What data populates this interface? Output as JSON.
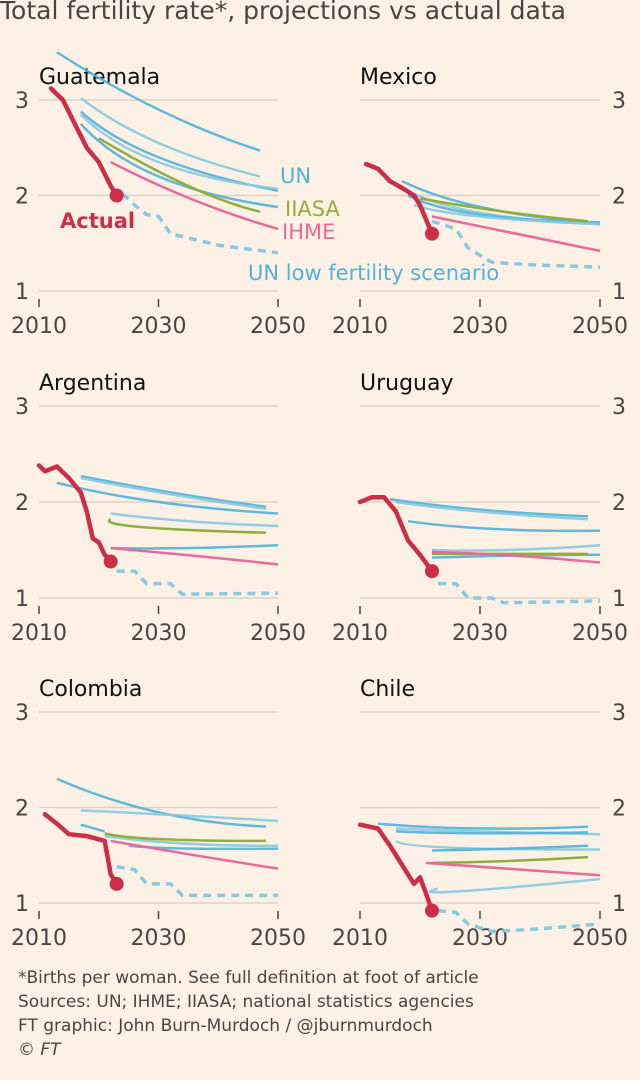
{
  "title": "Total fertility rate*, projections vs actual data",
  "footer": {
    "note": "*Births per woman. See full definition at foot of article",
    "sources": "Sources: UN; IHME; IIASA; national statistics agencies",
    "credit": "FT graphic: John Burn-Murdoch / @jburnmurdoch",
    "copyright": "© FT"
  },
  "colors": {
    "background": "#fdf1e6",
    "actual": "#cc2d47",
    "un": "#4fb3d9",
    "un_light": "#86c9e0",
    "iiasa": "#8fae3a",
    "ihme": "#e8699a",
    "grid": "#ddd2c6",
    "text": "#4a4440"
  },
  "chart_data": {
    "type": "line",
    "layout": "small multiples, 3 rows x 2 columns",
    "xlim": [
      2010,
      2050
    ],
    "ylim": [
      1,
      3
    ],
    "x_ticks": [
      "2010",
      "2030",
      "2050"
    ],
    "y_ticks": [
      "1",
      "2",
      "3"
    ],
    "grid": true,
    "legend_labels": {
      "un": "UN",
      "iiasa": "IIASA",
      "ihme": "IHME",
      "actual": "Actual",
      "un_low": "UN low fertility scenario"
    },
    "panels": [
      {
        "country": "Guatemala",
        "actual": [
          [
            2012,
            3.12
          ],
          [
            2014,
            3.0
          ],
          [
            2016,
            2.75
          ],
          [
            2018,
            2.5
          ],
          [
            2020,
            2.35
          ],
          [
            2022,
            2.1
          ],
          [
            2023,
            2.0
          ]
        ],
        "un": [
          [
            [
              2013,
              3.5
            ],
            [
              2030,
              2.9
            ],
            [
              2047,
              2.47
            ]
          ],
          [
            [
              2017,
              3.02
            ],
            [
              2030,
              2.55
            ],
            [
              2047,
              2.2
            ]
          ],
          [
            [
              2017,
              2.88
            ],
            [
              2030,
              2.4
            ],
            [
              2050,
              2.05
            ]
          ],
          [
            [
              2017,
              2.85
            ],
            [
              2030,
              2.35
            ],
            [
              2050,
              2.07
            ]
          ],
          [
            [
              2017,
              2.75
            ],
            [
              2030,
              2.2
            ],
            [
              2050,
              1.88
            ]
          ]
        ],
        "iiasa": [
          [
            2020,
            2.6
          ],
          [
            2035,
            2.1
          ],
          [
            2047,
            1.83
          ]
        ],
        "ihme": [
          [
            2022,
            2.35
          ],
          [
            2036,
            1.95
          ],
          [
            2050,
            1.65
          ]
        ],
        "un_low": [
          [
            2024,
            2.02
          ],
          [
            2026,
            1.9
          ],
          [
            2028,
            1.8
          ],
          [
            2030,
            1.78
          ],
          [
            2032,
            1.6
          ],
          [
            2040,
            1.48
          ],
          [
            2050,
            1.4
          ]
        ]
      },
      {
        "country": "Mexico",
        "actual": [
          [
            2011,
            2.33
          ],
          [
            2013,
            2.28
          ],
          [
            2015,
            2.15
          ],
          [
            2017,
            2.08
          ],
          [
            2019,
            2.0
          ],
          [
            2020,
            1.9
          ],
          [
            2021,
            1.75
          ],
          [
            2022,
            1.6
          ]
        ],
        "un": [
          [
            [
              2017,
              2.15
            ],
            [
              2030,
              1.88
            ],
            [
              2048,
              1.72
            ]
          ],
          [
            [
              2018,
              2.05
            ],
            [
              2030,
              1.82
            ],
            [
              2050,
              1.7
            ]
          ],
          [
            [
              2018,
              2.0
            ],
            [
              2030,
              1.8
            ],
            [
              2050,
              1.72
            ]
          ],
          [
            [
              2019,
              1.9
            ],
            [
              2030,
              1.78
            ],
            [
              2050,
              1.7
            ]
          ]
        ],
        "iiasa": [
          [
            2020,
            1.97
          ],
          [
            2034,
            1.83
          ],
          [
            2048,
            1.73
          ]
        ],
        "ihme": [
          [
            2022,
            1.78
          ],
          [
            2036,
            1.6
          ],
          [
            2050,
            1.42
          ]
        ],
        "un_low": [
          [
            2022,
            1.73
          ],
          [
            2026,
            1.65
          ],
          [
            2028,
            1.45
          ],
          [
            2032,
            1.3
          ],
          [
            2040,
            1.27
          ],
          [
            2050,
            1.25
          ]
        ]
      },
      {
        "country": "Argentina",
        "actual": [
          [
            2010,
            2.38
          ],
          [
            2011,
            2.32
          ],
          [
            2013,
            2.37
          ],
          [
            2015,
            2.25
          ],
          [
            2017,
            2.1
          ],
          [
            2018,
            1.9
          ],
          [
            2019,
            1.62
          ],
          [
            2020,
            1.58
          ],
          [
            2021,
            1.45
          ],
          [
            2022,
            1.38
          ]
        ],
        "un": [
          [
            [
              2017,
              2.27
            ],
            [
              2032,
              2.1
            ],
            [
              2048,
              1.95
            ]
          ],
          [
            [
              2017,
              2.25
            ],
            [
              2032,
              2.08
            ],
            [
              2048,
              1.93
            ]
          ],
          [
            [
              2013,
              2.2
            ],
            [
              2030,
              2.0
            ],
            [
              2050,
              1.88
            ]
          ],
          [
            [
              2022,
              1.88
            ],
            [
              2035,
              1.8
            ],
            [
              2050,
              1.75
            ]
          ],
          [
            [
              2022,
              1.52
            ],
            [
              2035,
              1.52
            ],
            [
              2050,
              1.55
            ]
          ]
        ],
        "iiasa": [
          [
            2022,
            1.82
          ],
          [
            2027,
            1.74
          ],
          [
            2048,
            1.68
          ]
        ],
        "ihme": [
          [
            2022,
            1.52
          ],
          [
            2036,
            1.44
          ],
          [
            2050,
            1.35
          ]
        ],
        "un_low": [
          [
            2023,
            1.28
          ],
          [
            2026,
            1.28
          ],
          [
            2028,
            1.15
          ],
          [
            2032,
            1.15
          ],
          [
            2034,
            1.04
          ],
          [
            2050,
            1.05
          ]
        ]
      },
      {
        "country": "Uruguay",
        "actual": [
          [
            2010,
            2.0
          ],
          [
            2012,
            2.05
          ],
          [
            2014,
            2.05
          ],
          [
            2016,
            1.9
          ],
          [
            2018,
            1.6
          ],
          [
            2020,
            1.45
          ],
          [
            2022,
            1.28
          ]
        ],
        "un": [
          [
            [
              2015,
              2.03
            ],
            [
              2030,
              1.92
            ],
            [
              2048,
              1.85
            ]
          ],
          [
            [
              2016,
              2.0
            ],
            [
              2030,
              1.9
            ],
            [
              2048,
              1.82
            ]
          ],
          [
            [
              2018,
              1.8
            ],
            [
              2032,
              1.72
            ],
            [
              2050,
              1.7
            ]
          ],
          [
            [
              2022,
              1.5
            ],
            [
              2035,
              1.5
            ],
            [
              2050,
              1.55
            ]
          ],
          [
            [
              2022,
              1.42
            ],
            [
              2035,
              1.44
            ],
            [
              2050,
              1.45
            ]
          ]
        ],
        "iiasa": [
          [
            2022,
            1.46
          ],
          [
            2035,
            1.46
          ],
          [
            2048,
            1.46
          ]
        ],
        "ihme": [
          [
            2022,
            1.48
          ],
          [
            2036,
            1.44
          ],
          [
            2050,
            1.37
          ]
        ],
        "un_low": [
          [
            2023,
            1.15
          ],
          [
            2026,
            1.15
          ],
          [
            2028,
            1.0
          ],
          [
            2032,
            1.0
          ],
          [
            2034,
            0.95
          ],
          [
            2050,
            0.97
          ]
        ]
      },
      {
        "country": "Colombia",
        "actual": [
          [
            2011,
            1.93
          ],
          [
            2013,
            1.83
          ],
          [
            2015,
            1.72
          ],
          [
            2018,
            1.7
          ],
          [
            2021,
            1.65
          ],
          [
            2022,
            1.3
          ],
          [
            2023,
            1.2
          ]
        ],
        "un": [
          [
            [
              2013,
              2.3
            ],
            [
              2030,
              1.95
            ],
            [
              2048,
              1.8
            ]
          ],
          [
            [
              2017,
              1.97
            ],
            [
              2033,
              1.92
            ],
            [
              2050,
              1.86
            ]
          ],
          [
            [
              2017,
              1.82
            ],
            [
              2021,
              1.75
            ]
          ],
          [
            [
              2021,
              1.7
            ],
            [
              2035,
              1.62
            ],
            [
              2050,
              1.6
            ]
          ],
          [
            [
              2025,
              1.6
            ],
            [
              2035,
              1.57
            ],
            [
              2050,
              1.57
            ]
          ]
        ],
        "iiasa": [
          [
            2021,
            1.73
          ],
          [
            2030,
            1.67
          ],
          [
            2048,
            1.65
          ]
        ],
        "ihme": [
          [
            2022,
            1.65
          ],
          [
            2036,
            1.5
          ],
          [
            2050,
            1.36
          ]
        ],
        "un_low": [
          [
            2023,
            1.38
          ],
          [
            2026,
            1.35
          ],
          [
            2028,
            1.2
          ],
          [
            2032,
            1.2
          ],
          [
            2034,
            1.08
          ],
          [
            2050,
            1.08
          ]
        ]
      },
      {
        "country": "Chile",
        "actual": [
          [
            2010,
            1.82
          ],
          [
            2013,
            1.78
          ],
          [
            2015,
            1.6
          ],
          [
            2017,
            1.4
          ],
          [
            2019,
            1.2
          ],
          [
            2020,
            1.27
          ],
          [
            2021,
            1.1
          ],
          [
            2022,
            0.92
          ]
        ],
        "un": [
          [
            [
              2013,
              1.83
            ],
            [
              2030,
              1.78
            ],
            [
              2048,
              1.8
            ]
          ],
          [
            [
              2016,
              1.78
            ],
            [
              2030,
              1.75
            ],
            [
              2050,
              1.72
            ]
          ],
          [
            [
              2016,
              1.75
            ],
            [
              2030,
              1.73
            ],
            [
              2048,
              1.74
            ]
          ],
          [
            [
              2016,
              1.65
            ],
            [
              2025,
              1.58
            ],
            [
              2050,
              1.56
            ]
          ],
          [
            [
              2022,
              1.55
            ],
            [
              2035,
              1.57
            ],
            [
              2048,
              1.6
            ]
          ],
          [
            [
              2023,
              1.15
            ],
            [
              2026,
              1.12
            ],
            [
              2050,
              1.25
            ]
          ]
        ],
        "iiasa": [
          [
            2022,
            1.42
          ],
          [
            2035,
            1.44
          ],
          [
            2048,
            1.48
          ]
        ],
        "ihme": [
          [
            2021,
            1.42
          ],
          [
            2030,
            1.38
          ],
          [
            2050,
            1.29
          ]
        ],
        "un_low": [
          [
            2023,
            0.92
          ],
          [
            2026,
            0.9
          ],
          [
            2028,
            0.78
          ],
          [
            2032,
            0.7
          ],
          [
            2040,
            0.73
          ],
          [
            2050,
            0.78
          ]
        ]
      }
    ]
  }
}
